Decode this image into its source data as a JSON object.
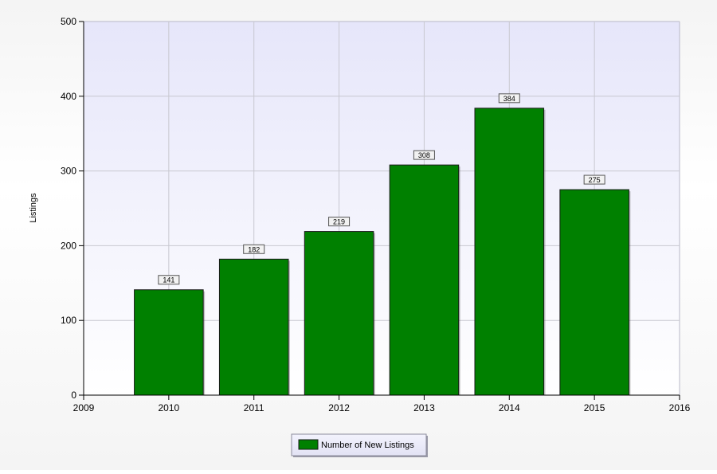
{
  "chart_data": {
    "type": "bar",
    "title": "",
    "xlabel": "",
    "ylabel": "Listings",
    "x": [
      2010,
      2011,
      2012,
      2013,
      2014,
      2015
    ],
    "values": [
      141,
      182,
      219,
      308,
      384,
      275
    ],
    "series": [
      {
        "name": "Number of New Listings",
        "values": [
          141,
          182,
          219,
          308,
          384,
          275
        ],
        "color": "#008000"
      }
    ],
    "xlim": [
      2009,
      2016
    ],
    "ylim": [
      0,
      500
    ],
    "x_ticks": [
      2009,
      2010,
      2011,
      2012,
      2013,
      2014,
      2015,
      2016
    ],
    "y_ticks": [
      0,
      100,
      200,
      300,
      400,
      500
    ],
    "grid": true,
    "legend_position": "bottom-center",
    "data_labels": true
  },
  "colors": {
    "plot_background_top": "#e9e9fb",
    "plot_background_bottom": "#ffffff",
    "grid": "#c8c8d0",
    "bar": "#008000",
    "bar_outline": "#1a1a1a",
    "legend_background": "#ececfa"
  }
}
